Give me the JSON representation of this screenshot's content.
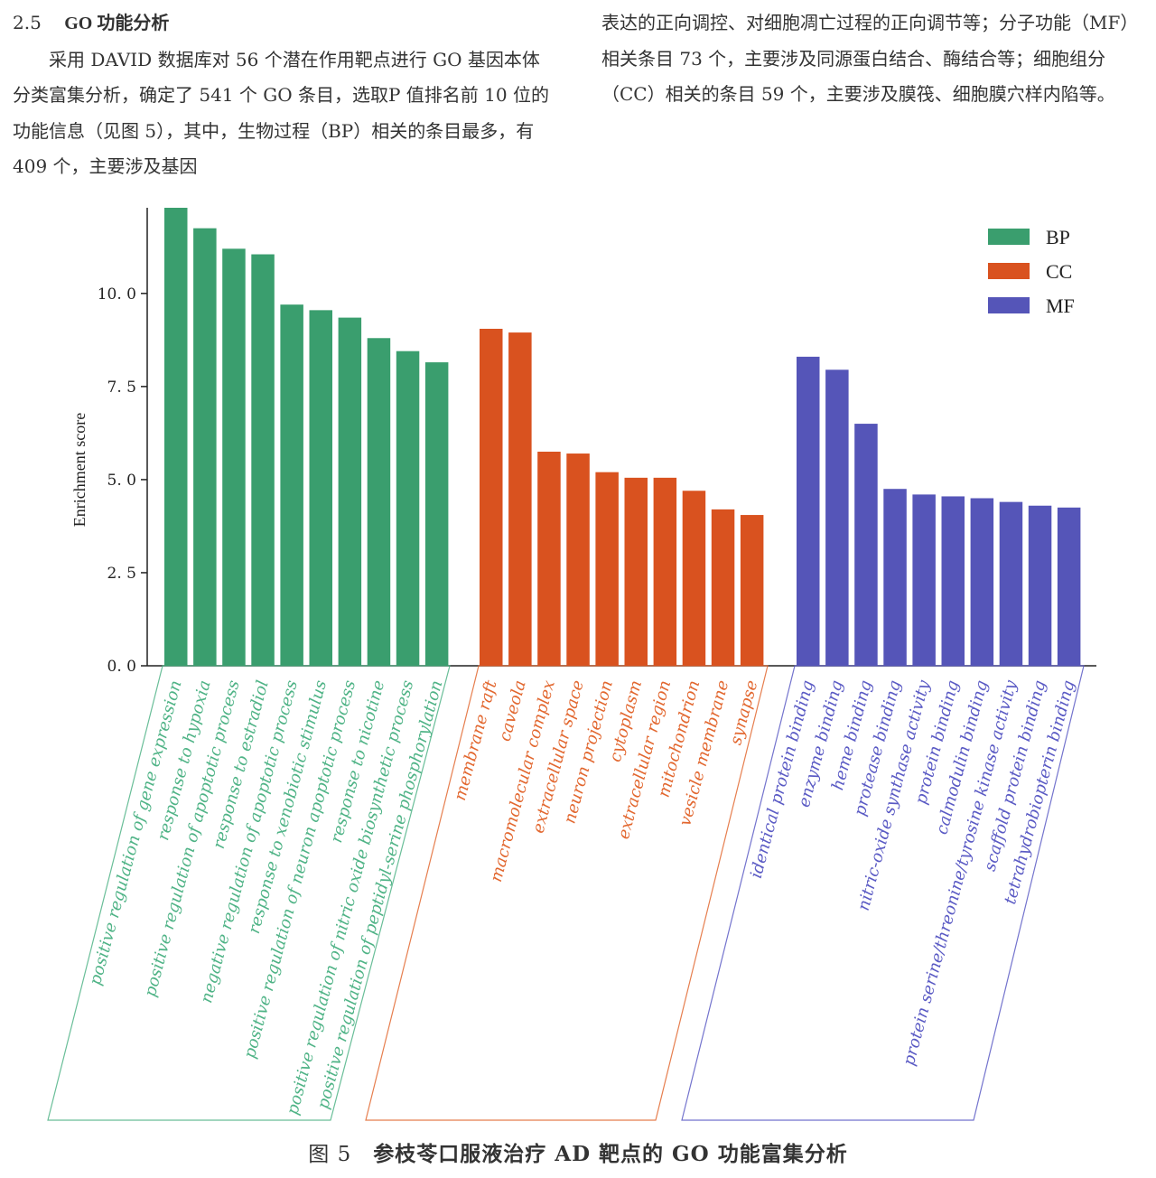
{
  "text": {
    "heading_num": "2.5",
    "heading_title": "GO 功能分析",
    "left_paragraph": "采用 DAVID 数据库对 56 个潜在作用靶点进行 GO 基因本体分类富集分析，确定了 541 个 GO 条目，选取P 值排名前 10 位的功能信息（见图 5），其中，生物过程（BP）相关的条目最多，有 409 个，主要涉及基因",
    "right_paragraph": "表达的正向调控、对细胞凋亡过程的正向调节等；分子功能（MF）相关条目 73 个，主要涉及同源蛋白结合、酶结合等；细胞组分（CC）相关的条目 59 个，主要涉及膜筏、细胞膜穴样内陷等。"
  },
  "caption": {
    "figure_number": "图 5",
    "title": "参枝苓口服液治疗 AD 靶点的 GO 功能富集分析"
  },
  "chart_data": {
    "type": "bar",
    "ylabel": "Enrichment score",
    "ylim": [
      0,
      12.3
    ],
    "yticks": [
      0.0,
      2.5,
      5.0,
      7.5,
      10.0
    ],
    "ytick_labels": [
      "0. 0",
      "2. 5",
      "5. 0",
      "7. 5",
      "10. 0"
    ],
    "legend_position": "top-right",
    "series": [
      {
        "name": "BP",
        "color": "#3a9e6e",
        "label_color": "#4fb386",
        "categories": [
          "positive regulation of gene expression",
          "response to hypoxia",
          "positive regulation of apoptotic process",
          "response to estradiol",
          "negative regulation of apoptotic process",
          "response to xenobiotic stimulus",
          "positive regulation of neuron apoptotic process",
          "response to nicotine",
          "positive regulation of nitric oxide biosynthetic process",
          "positive regulation of peptidyl-serine phosphorylation"
        ],
        "values": [
          12.3,
          11.75,
          11.2,
          11.05,
          9.7,
          9.55,
          9.35,
          8.8,
          8.45,
          8.15
        ]
      },
      {
        "name": "CC",
        "color": "#d9521f",
        "label_color": "#e2672f",
        "categories": [
          "membrane raft",
          "caveola",
          "macromolecular complex",
          "extracellular space",
          "neuron projection",
          "cytoplasm",
          "extracellular region",
          "mitochondrion",
          "vesicle membrane",
          "synapse"
        ],
        "values": [
          9.05,
          8.95,
          5.75,
          5.7,
          5.2,
          5.05,
          5.05,
          4.7,
          4.2,
          4.05
        ]
      },
      {
        "name": "MF",
        "color": "#5555b8",
        "label_color": "#5a5ac4",
        "categories": [
          "identical protein binding",
          "enzyme binding",
          "heme binding",
          "protease binding",
          "nitric-oxide synthase activity",
          "protein binding",
          "calmodulin binding",
          "protein serine/threonine/tyrosine kinase activity",
          "scaffold protein binding",
          "tetrahydrobiopterin binding"
        ],
        "values": [
          8.3,
          7.95,
          6.5,
          4.75,
          4.6,
          4.55,
          4.5,
          4.4,
          4.3,
          4.25
        ]
      }
    ]
  }
}
